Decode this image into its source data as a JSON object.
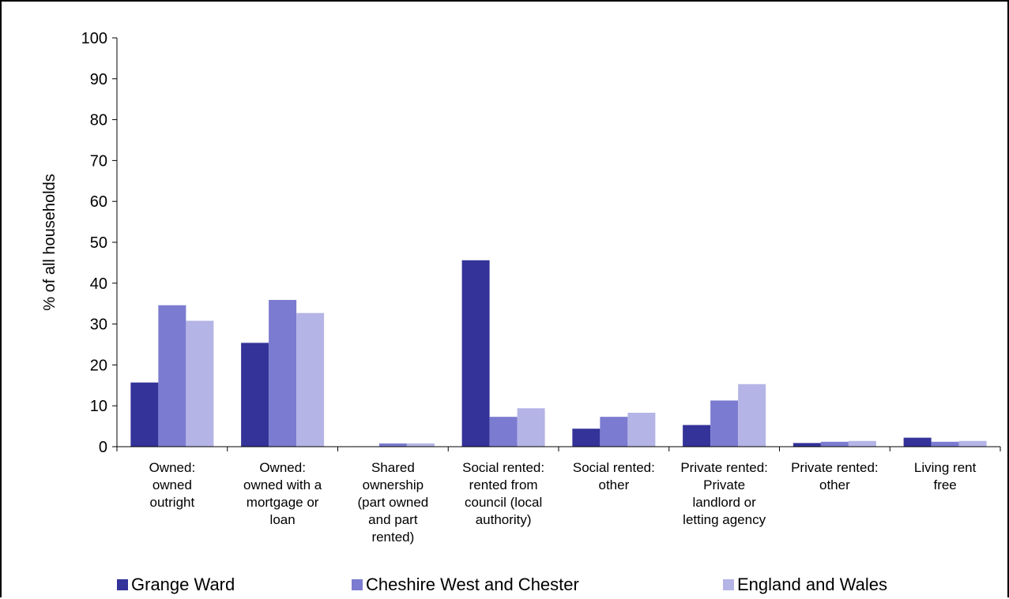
{
  "chart_data": {
    "type": "bar",
    "title": "",
    "xlabel": "",
    "ylabel": "% of all households",
    "ylim": [
      0,
      100
    ],
    "yticks": [
      0,
      10,
      20,
      30,
      40,
      50,
      60,
      70,
      80,
      90,
      100
    ],
    "grid": false,
    "legend_position": "bottom",
    "categories": [
      [
        "Owned:",
        "owned",
        "outright"
      ],
      [
        "Owned:",
        "owned with a",
        "mortgage or",
        "loan"
      ],
      [
        "Shared",
        "ownership",
        "(part owned",
        "and part",
        "rented)"
      ],
      [
        "Social rented:",
        "rented from",
        "council (local",
        "authority)"
      ],
      [
        "Social rented:",
        "other"
      ],
      [
        "Private rented:",
        "Private",
        "landlord or",
        "letting agency"
      ],
      [
        "Private rented:",
        "other"
      ],
      [
        "Living rent",
        "free"
      ]
    ],
    "series": [
      {
        "name": "Grange Ward",
        "color": "#333399",
        "values": [
          15.7,
          25.4,
          0.1,
          45.6,
          4.4,
          5.3,
          0.9,
          2.2
        ]
      },
      {
        "name": "Cheshire West and Chester",
        "color": "#7b7bd1",
        "values": [
          34.6,
          35.9,
          0.8,
          7.3,
          7.3,
          11.3,
          1.2,
          1.2
        ]
      },
      {
        "name": "England and Wales",
        "color": "#b4b4e6",
        "values": [
          30.8,
          32.7,
          0.8,
          9.4,
          8.3,
          15.3,
          1.4,
          1.4
        ]
      }
    ]
  }
}
